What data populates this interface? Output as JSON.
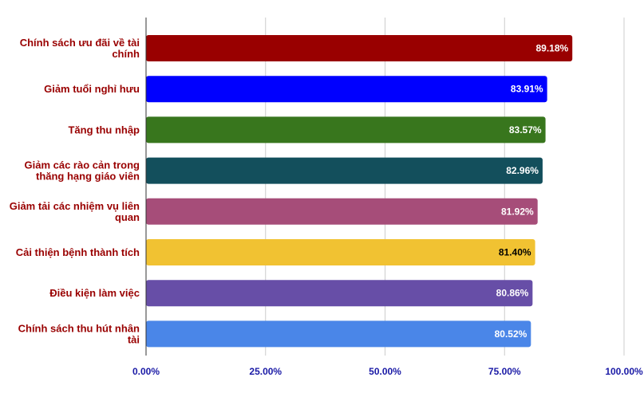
{
  "chart_data": {
    "type": "bar",
    "orientation": "horizontal",
    "categories": [
      [
        "Chính sách ưu đãi về tài",
        "chính"
      ],
      [
        "Giảm tuổi nghỉ hưu"
      ],
      [
        "Tăng thu nhập"
      ],
      [
        "Giảm các rào cản trong",
        "thăng hạng giáo viên"
      ],
      [
        "Giảm tải các nhiệm vụ liên",
        "quan"
      ],
      [
        "Cải thiện bệnh thành tích"
      ],
      [
        "Điều kiện làm việc"
      ],
      [
        "Chính sách thu hút nhân",
        "tài"
      ]
    ],
    "values": [
      89.18,
      83.91,
      83.57,
      82.96,
      81.92,
      81.4,
      80.86,
      80.52
    ],
    "value_labels": [
      "89.18%",
      "83.91%",
      "83.57%",
      "82.96%",
      "81.92%",
      "81.40%",
      "80.86%",
      "80.52%"
    ],
    "bar_colors": [
      "#990000",
      "#0000ff",
      "#38761d",
      "#134f5c",
      "#a64d79",
      "#f1c232",
      "#674ea7",
      "#4a86e8"
    ],
    "value_label_colors": [
      "#ffffff",
      "#ffffff",
      "#ffffff",
      "#ffffff",
      "#ffffff",
      "#000000",
      "#ffffff",
      "#ffffff"
    ],
    "xlim": [
      0,
      100
    ],
    "x_ticks": [
      0,
      25,
      50,
      75,
      100
    ],
    "x_tick_labels": [
      "0.00%",
      "25.00%",
      "50.00%",
      "75.00%",
      "100.00%"
    ],
    "grid": true,
    "category_label_color": "#990000",
    "tick_label_color": "#1a1aa6"
  }
}
